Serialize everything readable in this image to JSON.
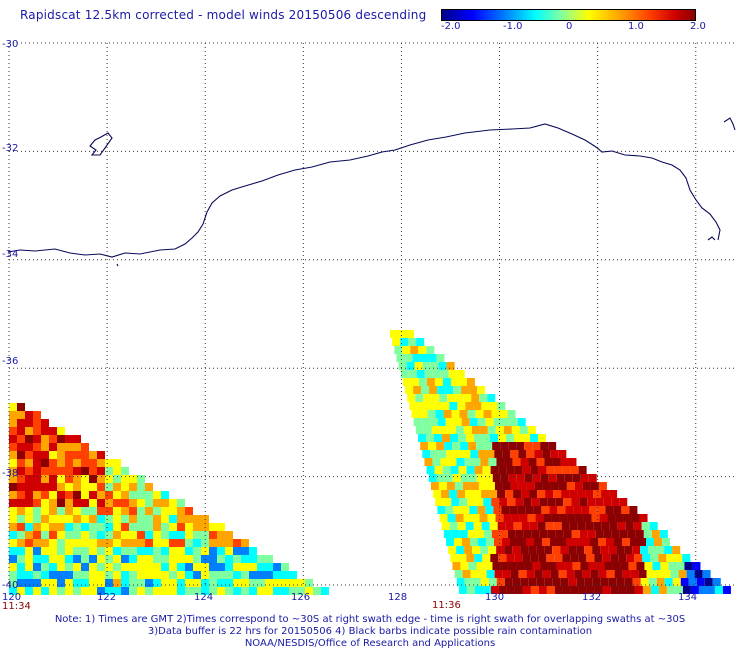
{
  "title": "Rapidscat 12.5km corrected - model winds 20150506 descending",
  "colorbar": {
    "tick_labels": [
      "-2.0",
      "-1.0",
      "0",
      "1.0",
      "2.0"
    ],
    "range": [
      -2.0,
      2.0
    ],
    "colors": [
      "#00008b",
      "#0000ff",
      "#0080ff",
      "#00ffff",
      "#80ffa0",
      "#ffff00",
      "#ffa500",
      "#ff4000",
      "#d00000",
      "#8b0000"
    ]
  },
  "map": {
    "lon_ticks": [
      "120",
      "122",
      "124",
      "126",
      "128",
      "130",
      "132",
      "134"
    ],
    "lat_ticks": [
      "-30",
      "-32",
      "-34",
      "-36",
      "-38",
      "-40"
    ],
    "lon_range": [
      120,
      134.8
    ],
    "lat_range": [
      -40,
      -30
    ],
    "grid": true,
    "coastline_color": "#0a0a5a",
    "swath_times": [
      {
        "label": "11:34",
        "lon": 120.3
      },
      {
        "label": "11:36",
        "lon": 128.9
      }
    ]
  },
  "footer": {
    "line1": "Note: 1) Times are GMT 2)Times correspond to ~30S at right swath edge - time is right swath for overlapping swaths at ~30S",
    "line2": "3)Data buffer is 22 hrs for 20150506 4) Black barbs indicate possible rain contamination",
    "line3": "NOAA/NESDIS/Office of Research and Applications"
  }
}
